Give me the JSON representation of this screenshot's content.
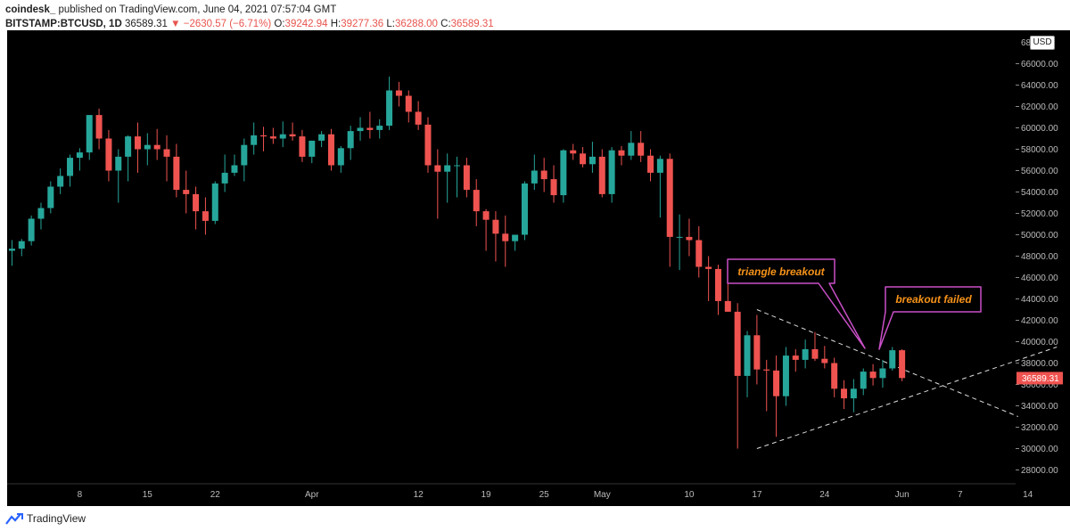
{
  "header": {
    "publisher": "coindesk_",
    "published_text": "published on TradingView.com, June 04, 2021 07:57:04 GMT",
    "symbol": "BITSTAMP:BTCUSD, 1D",
    "last_price": "36589.31",
    "change": "−2630.57 (−6.71%)",
    "o_label": "O:",
    "o_value": "39242.94",
    "h_label": "H:",
    "h_value": "39277.36",
    "l_label": "L:",
    "l_value": "36288.00",
    "c_label": "C:",
    "c_value": "36589.31"
  },
  "currency_badge": "USD",
  "footer": {
    "brand": "TradingView"
  },
  "colors": {
    "up": "#26a69a",
    "down": "#ef5350",
    "background": "#000000",
    "annotation_border": "#c94fc7",
    "annotation_text": "#f7931a",
    "trendline": "#dddddd"
  },
  "annotations": [
    {
      "text": "triangle breakout"
    },
    {
      "text": "breakout failed"
    }
  ],
  "chart_data": {
    "type": "candlestick",
    "symbol": "BITSTAMP:BTCUSD",
    "interval": "1D",
    "ylim": [
      26000,
      68000
    ],
    "yticks": [
      28000,
      30000,
      32000,
      34000,
      36000,
      38000,
      40000,
      42000,
      44000,
      46000,
      48000,
      50000,
      52000,
      54000,
      56000,
      58000,
      60000,
      62000,
      64000,
      66000
    ],
    "ytick_labels": [
      "28000.00",
      "30000.00",
      "32000.00",
      "34000.00",
      "36000.00",
      "38000.00",
      "40000.00",
      "42000.00",
      "44000.00",
      "46000.00",
      "48000.00",
      "50000.00",
      "52000.00",
      "54000.00",
      "56000.00",
      "58000.00",
      "60000.00",
      "62000.00",
      "64000.00",
      "66000.00"
    ],
    "ytick_partial": "68",
    "xtick_labels": [
      "8",
      "15",
      "22",
      "Apr",
      "12",
      "19",
      "25",
      "May",
      "10",
      "17",
      "24",
      "Jun",
      "7",
      "14"
    ],
    "xtick_index": [
      7,
      14,
      21,
      31,
      42,
      49,
      55,
      61,
      70,
      77,
      84,
      92,
      98,
      105
    ],
    "last_price_label": "36589.31",
    "last_price": 36589.31,
    "candles": [
      [
        48500,
        49500,
        47100,
        48700
      ],
      [
        48700,
        49600,
        48000,
        49400
      ],
      [
        49400,
        51800,
        49000,
        51500
      ],
      [
        51500,
        53000,
        50500,
        52500
      ],
      [
        52500,
        55000,
        52000,
        54500
      ],
      [
        54500,
        56200,
        53800,
        55500
      ],
      [
        55500,
        57500,
        54500,
        57200
      ],
      [
        57200,
        58100,
        56000,
        57700
      ],
      [
        57700,
        61200,
        57000,
        61200
      ],
      [
        61200,
        61800,
        58000,
        59000
      ],
      [
        59000,
        59800,
        55000,
        56000
      ],
      [
        56000,
        58000,
        53000,
        57300
      ],
      [
        57300,
        59300,
        55000,
        59200
      ],
      [
        59200,
        60500,
        55800,
        58000
      ],
      [
        58000,
        59500,
        56500,
        58400
      ],
      [
        58400,
        59900,
        57000,
        58000
      ],
      [
        58000,
        59300,
        55000,
        57300
      ],
      [
        57300,
        58500,
        53500,
        54200
      ],
      [
        54200,
        56000,
        52000,
        53800
      ],
      [
        53800,
        54500,
        50500,
        52200
      ],
      [
        52200,
        53500,
        50000,
        51300
      ],
      [
        51300,
        55000,
        51000,
        54800
      ],
      [
        54800,
        57500,
        54000,
        55800
      ],
      [
        55800,
        57500,
        55500,
        56500
      ],
      [
        56500,
        59000,
        55000,
        58400
      ],
      [
        58400,
        60500,
        57500,
        59300
      ],
      [
        59300,
        60100,
        57800,
        59200
      ],
      [
        59200,
        60000,
        58500,
        59000
      ],
      [
        59000,
        60600,
        58200,
        59400
      ],
      [
        59400,
        60500,
        58800,
        59200
      ],
      [
        59200,
        59800,
        56800,
        57300
      ],
      [
        57300,
        58800,
        56700,
        58800
      ],
      [
        58800,
        59700,
        58200,
        59400
      ],
      [
        59400,
        59900,
        56000,
        56500
      ],
      [
        56500,
        58300,
        55800,
        58100
      ],
      [
        58100,
        60200,
        57000,
        59700
      ],
      [
        59700,
        61000,
        58800,
        60000
      ],
      [
        60000,
        61500,
        59000,
        59800
      ],
      [
        59800,
        60800,
        59000,
        60200
      ],
      [
        60200,
        64800,
        59800,
        63500
      ],
      [
        63500,
        64300,
        62000,
        63000
      ],
      [
        63000,
        63500,
        60500,
        61500
      ],
      [
        61500,
        62500,
        59800,
        60300
      ],
      [
        60300,
        61000,
        55800,
        56500
      ],
      [
        56500,
        58000,
        51500,
        55900
      ],
      [
        55900,
        57600,
        53000,
        56500
      ],
      [
        56500,
        57300,
        53500,
        56500
      ],
      [
        56500,
        57200,
        53500,
        54200
      ],
      [
        54200,
        55200,
        50800,
        52200
      ],
      [
        52200,
        52400,
        48500,
        51400
      ],
      [
        51400,
        52200,
        47500,
        50100
      ],
      [
        50100,
        51800,
        47000,
        49400
      ],
      [
        49400,
        50000,
        48500,
        50000
      ],
      [
        50000,
        55000,
        49500,
        54800
      ],
      [
        54800,
        57500,
        54200,
        56000
      ],
      [
        56000,
        57200,
        54000,
        55200
      ],
      [
        55200,
        56500,
        53000,
        53700
      ],
      [
        53700,
        58000,
        53000,
        57900
      ],
      [
        57900,
        58500,
        57000,
        57600
      ],
      [
        57600,
        58200,
        56300,
        56600
      ],
      [
        56600,
        58700,
        55800,
        57300
      ],
      [
        57300,
        58000,
        53500,
        53800
      ],
      [
        53800,
        58200,
        53000,
        57900
      ],
      [
        57900,
        58300,
        56500,
        57400
      ],
      [
        57400,
        59700,
        57000,
        58600
      ],
      [
        58600,
        59700,
        56800,
        57400
      ],
      [
        57400,
        58000,
        55000,
        55800
      ],
      [
        55800,
        57400,
        51600,
        57100
      ],
      [
        57100,
        57600,
        47000,
        49800
      ],
      [
        49800,
        51900,
        46700,
        49800
      ],
      [
        49800,
        51500,
        48000,
        49500
      ],
      [
        49500,
        50800,
        46000,
        47000
      ],
      [
        47000,
        48000,
        43800,
        46800
      ],
      [
        46800,
        47200,
        42500,
        43800
      ],
      [
        43800,
        45600,
        42800,
        42800
      ],
      [
        42800,
        43600,
        30000,
        36800
      ],
      [
        36800,
        41000,
        34800,
        40600
      ],
      [
        40600,
        42500,
        36000,
        37400
      ],
      [
        37400,
        38300,
        33500,
        37300
      ],
      [
        37300,
        38700,
        31100,
        34900
      ],
      [
        34900,
        39500,
        34000,
        38700
      ],
      [
        38700,
        39300,
        37200,
        38300
      ],
      [
        38300,
        40200,
        37500,
        39300
      ],
      [
        39300,
        40900,
        38200,
        38400
      ],
      [
        38400,
        39600,
        37500,
        38000
      ],
      [
        38000,
        38500,
        34800,
        35600
      ],
      [
        35600,
        36400,
        33700,
        34700
      ],
      [
        34700,
        36500,
        33400,
        35600
      ],
      [
        35600,
        37500,
        35000,
        37200
      ],
      [
        37200,
        37900,
        35900,
        36600
      ],
      [
        36600,
        38300,
        35700,
        37500
      ],
      [
        37500,
        39500,
        37300,
        39200
      ],
      [
        39200,
        39300,
        36300,
        36600
      ]
    ],
    "trendlines": [
      {
        "name": "triangle upper",
        "points": [
          [
            77,
            43000
          ],
          [
            104,
            33000
          ]
        ]
      },
      {
        "name": "triangle lower",
        "points": [
          [
            77,
            30000
          ],
          [
            108,
            39500
          ]
        ]
      }
    ]
  }
}
